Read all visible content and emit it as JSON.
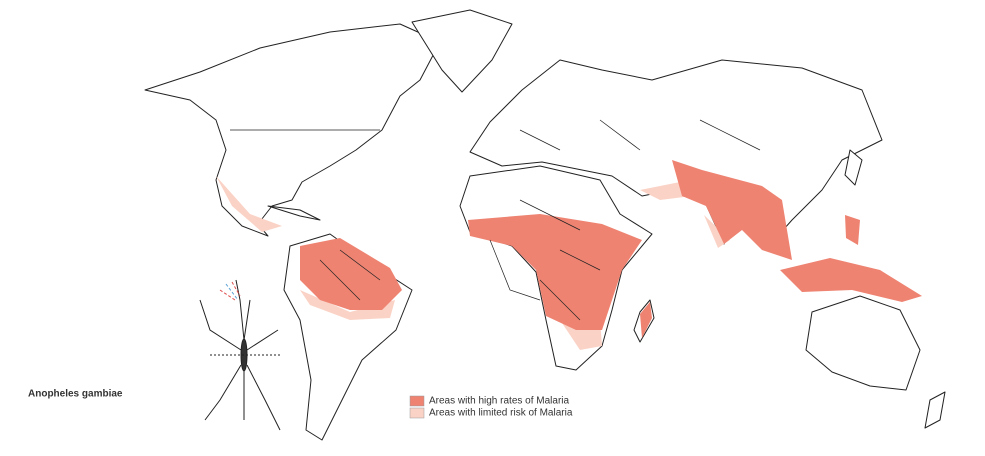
{
  "species": "Anopheles gambiae",
  "legend": [
    {
      "label": "Areas with high rates of Malaria",
      "color": "#ee8372"
    },
    {
      "label": "Areas with limited risk of Malaria",
      "color": "#fad3c6"
    }
  ]
}
